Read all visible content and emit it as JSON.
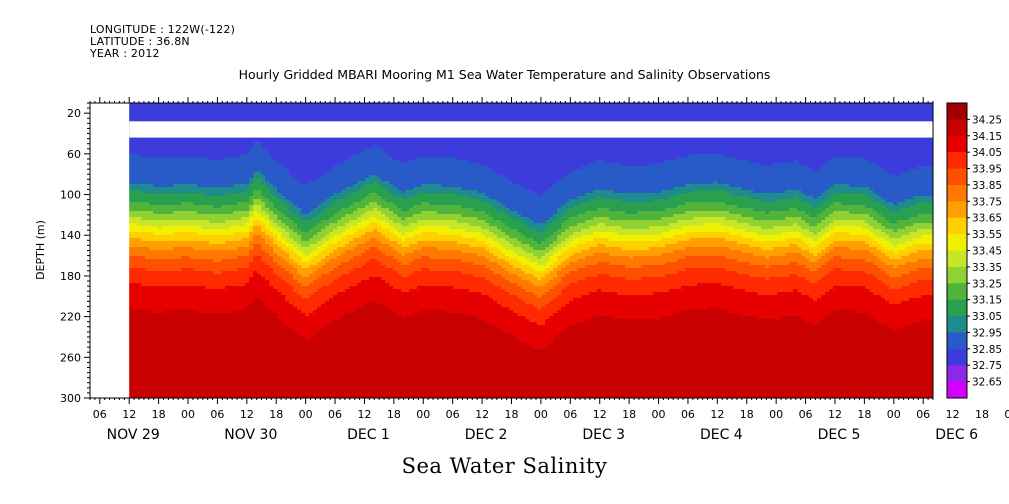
{
  "header": {
    "longitude": "LONGITUDE : 122W(-122)",
    "latitude": "LATITUDE : 36.8N",
    "year": "YEAR : 2012"
  },
  "chart_data": {
    "type": "heatmap",
    "title": "Hourly Gridded MBARI Mooring M1 Sea Water Temperature and Salinity Observations",
    "xlabel": "Sea Water Salinity",
    "ylabel": "DEPTH (m)",
    "ylim": [
      300,
      10
    ],
    "y_ticks": [
      20,
      60,
      100,
      140,
      180,
      220,
      260,
      300
    ],
    "x_hour_ticks": [
      "06",
      "12",
      "18",
      "00",
      "06",
      "12",
      "18",
      "00",
      "06",
      "12",
      "18",
      "00",
      "06",
      "12",
      "18",
      "00",
      "06",
      "12",
      "18",
      "00",
      "06",
      "12",
      "18",
      "00",
      "06",
      "12",
      "18",
      "00",
      "06",
      "12",
      "18",
      "00",
      "06",
      "12",
      "18",
      "00",
      "06"
    ],
    "x_day_labels": [
      "NOV 29",
      "NOV 30",
      "DEC  1",
      "DEC  2",
      "DEC  3",
      "DEC  4",
      "DEC  5",
      "DEC  6"
    ],
    "colorbar_levels": [
      34.25,
      34.15,
      34.05,
      33.95,
      33.85,
      33.75,
      33.65,
      33.55,
      33.45,
      33.35,
      33.25,
      33.15,
      33.05,
      32.95,
      32.85,
      32.75,
      32.65
    ],
    "colors": [
      "#a00000",
      "#c80000",
      "#e60000",
      "#ff2a00",
      "#ff5000",
      "#ff7800",
      "#ffa000",
      "#ffd000",
      "#f0f000",
      "#c8e628",
      "#90d232",
      "#50b43c",
      "#28a050",
      "#1e8c8c",
      "#285ac8",
      "#3c3cdc",
      "#8c28e6",
      "#d200ff"
    ],
    "time_start": "2012-11-29T04:00",
    "time_end": "2012-12-06T08:00",
    "data_start": "2012-11-29T12:00",
    "gap_depth_m": [
      28,
      44
    ],
    "halocline_profile": {
      "times": [
        "11-29 12",
        "11-29 18",
        "11-30 00",
        "11-30 06",
        "11-30 12",
        "11-30 14",
        "11-30 18",
        "12-01 00",
        "12-01 06",
        "12-01 14",
        "12-01 20",
        "12-02 00",
        "12-02 06",
        "12-02 12",
        "12-02 18",
        "12-03 00",
        "12-03 06",
        "12-03 12",
        "12-03 18",
        "12-04 00",
        "12-04 06",
        "12-04 12",
        "12-04 16",
        "12-04 22",
        "12-05 04",
        "12-05 08",
        "12-05 12",
        "12-05 18",
        "12-06 00",
        "12-06 06"
      ],
      "depth_33_55_m": [
        128,
        132,
        130,
        134,
        129,
        115,
        135,
        160,
        140,
        120,
        138,
        130,
        132,
        138,
        155,
        170,
        145,
        135,
        140,
        138,
        130,
        128,
        133,
        140,
        135,
        145,
        130,
        132,
        150,
        140
      ]
    }
  }
}
